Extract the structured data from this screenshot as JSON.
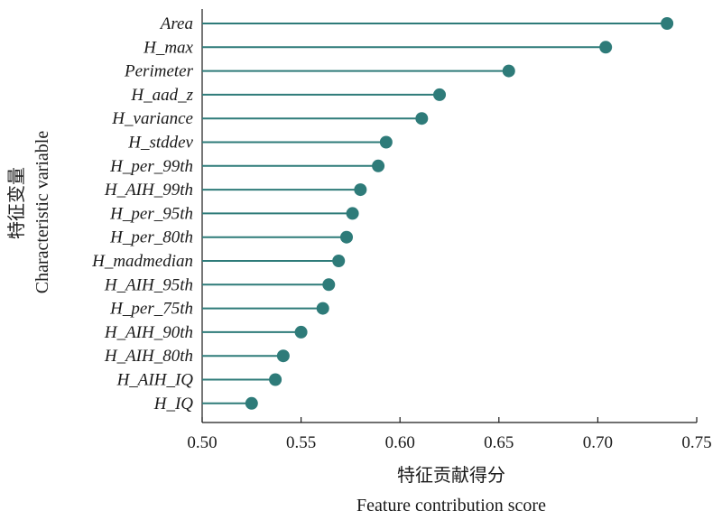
{
  "chart_data": {
    "type": "lollipop",
    "orientation": "horizontal",
    "categories": [
      "Area",
      "H_max",
      "Perimeter",
      "H_aad_z",
      "H_variance",
      "H_stddev",
      "H_per_99th",
      "H_AIH_99th",
      "H_per_95th",
      "H_per_80th",
      "H_madmedian",
      "H_AIH_95th",
      "H_per_75th",
      "H_AIH_90th",
      "H_AIH_80th",
      "H_AIH_IQ",
      "H_IQ"
    ],
    "values": [
      0.735,
      0.704,
      0.655,
      0.62,
      0.611,
      0.593,
      0.589,
      0.58,
      0.576,
      0.573,
      0.569,
      0.564,
      0.561,
      0.55,
      0.541,
      0.537,
      0.525
    ],
    "xlim": [
      0.5,
      0.75
    ],
    "xticks": [
      "0.50",
      "0.55",
      "0.60",
      "0.65",
      "0.70",
      "0.75"
    ],
    "xlabel_cn": "特征贡献得分",
    "xlabel_en": "Feature contribution score",
    "ylabel_cn": "特征变量",
    "ylabel_en": "Characteristic variable",
    "color": "#2e7b79",
    "grid": false
  }
}
